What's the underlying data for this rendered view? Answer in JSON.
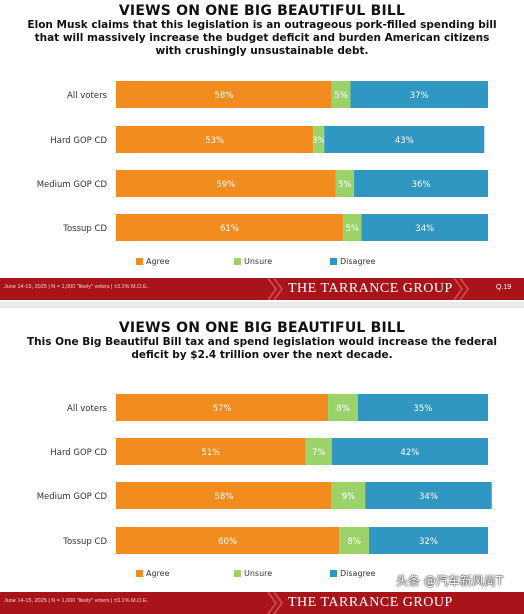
{
  "colors": {
    "agree": "#f28c1f",
    "unsure": "#9bd36a",
    "disagree": "#2f97c1",
    "footer": "#a8141a"
  },
  "panels": [
    {
      "footer": {
        "note": "June 14-15, 2025 | N = 1,000 \"likely\" voters | ±3.1% M.O.E.",
        "brand": "THE TARRANCE GROUP",
        "page": "Q.19"
      }
    },
    {
      "footer": {
        "note": "June 14-15, 2025 | N = 1,000 \"likely\" voters | ±3.1% M.O.E.",
        "brand": "THE TARRANCE GROUP",
        "page": ""
      }
    }
  ],
  "watermark": "头条 @汽车新风尚T",
  "chart_data": [
    {
      "type": "bar",
      "orientation": "horizontal-stacked-100",
      "title": "VIEWS ON ONE BIG BEAUTIFUL BILL",
      "subtitle": "Elon Musk claims that this legislation is an outrageous pork-filled spending bill that will massively increase the budget deficit and burden American citizens with crushingly unsustainable debt.",
      "categories": [
        "All voters",
        "Hard GOP CD",
        "Medium GOP CD",
        "Tossup CD"
      ],
      "series": [
        {
          "name": "Agree",
          "values": [
            58,
            53,
            59,
            61
          ]
        },
        {
          "name": "Unsure",
          "values": [
            5,
            3,
            5,
            5
          ]
        },
        {
          "name": "Disagree",
          "values": [
            37,
            43,
            36,
            34
          ]
        }
      ],
      "xlim": [
        0,
        100
      ],
      "legend": "bottom",
      "grid": false
    },
    {
      "type": "bar",
      "orientation": "horizontal-stacked-100",
      "title": "VIEWS ON ONE BIG BEAUTIFUL BILL",
      "subtitle": "This One Big Beautiful Bill tax and spend legislation would increase the federal deficit by $2.4 trillion over the next decade.",
      "categories": [
        "All voters",
        "Hard GOP CD",
        "Medium GOP CD",
        "Tossup CD"
      ],
      "series": [
        {
          "name": "Agree",
          "values": [
            57,
            51,
            58,
            60
          ]
        },
        {
          "name": "Unsure",
          "values": [
            8,
            7,
            9,
            8
          ]
        },
        {
          "name": "Disagree",
          "values": [
            35,
            42,
            34,
            32
          ]
        }
      ],
      "xlim": [
        0,
        100
      ],
      "legend": "bottom",
      "grid": false
    }
  ]
}
